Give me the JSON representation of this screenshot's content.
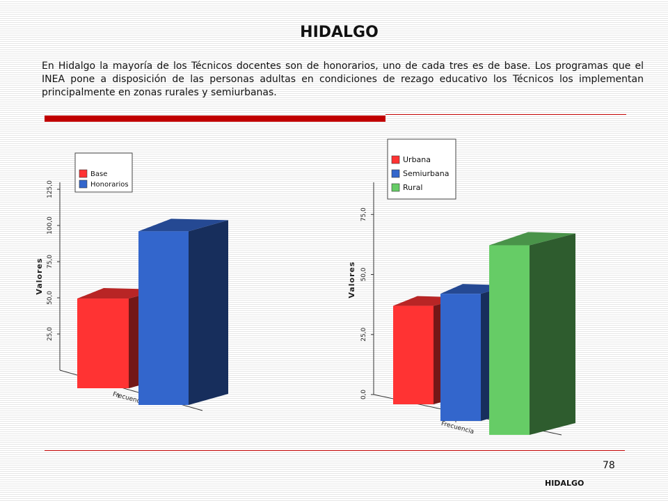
{
  "page": {
    "title": "HIDALGO",
    "intro": "En Hidalgo la mayoría de los Técnicos docentes son de honorarios, uno de cada tres es de base. Los programas que el INEA pone a disposición de las personas adultas en condiciones de rezago educativo los Técnicos los implementan  principalmente en zonas rurales y semiurbanas.",
    "page_number": "78",
    "footer_label": "HIDALGO"
  },
  "colors": {
    "accent_red": "#c00000"
  },
  "chart_data": [
    {
      "type": "bar",
      "categories": [
        "Frecuencia"
      ],
      "series": [
        {
          "name": "Base",
          "values": [
            62
          ],
          "color": "#ff3333"
        },
        {
          "name": "Honorarios",
          "values": [
            120
          ],
          "color": "#3366cc"
        }
      ],
      "ylabel": "Valores",
      "xlabel": "",
      "yticks": [
        25,
        50,
        75,
        100,
        125
      ],
      "tick_labels": [
        "25,0",
        "50,0",
        "75,0",
        "100,0",
        "125,0"
      ],
      "ylim": [
        0,
        125
      ],
      "legend": "top-left",
      "three_d": true
    },
    {
      "type": "bar",
      "categories": [
        "Frecuencia"
      ],
      "series": [
        {
          "name": "Urbana",
          "values": [
            41
          ],
          "color": "#ff3333"
        },
        {
          "name": "Semiurbana",
          "values": [
            53
          ],
          "color": "#3366cc"
        },
        {
          "name": "Rural",
          "values": [
            79
          ],
          "color": "#66cc66"
        }
      ],
      "ylabel": "Valores",
      "xlabel": "",
      "yticks": [
        0,
        25,
        50,
        75
      ],
      "tick_labels": [
        "0,0",
        "25,0",
        "50,0",
        "75,0"
      ],
      "ylim": [
        0,
        75
      ],
      "legend": "top-center",
      "three_d": true
    }
  ]
}
